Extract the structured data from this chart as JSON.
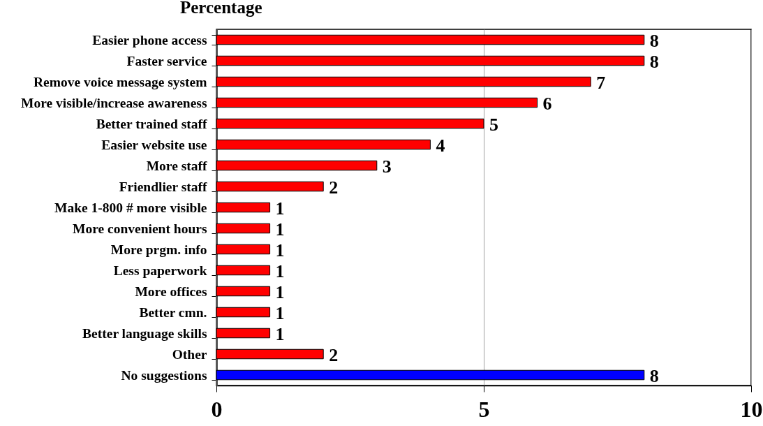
{
  "chart_data": {
    "type": "bar",
    "orientation": "horizontal",
    "title": "Percentage",
    "categories": [
      "Easier phone access",
      "Faster service",
      "Remove voice message system",
      "More visible/increase awareness",
      "Better trained staff",
      "Easier website use",
      "More staff",
      "Friendlier staff",
      "Make 1-800 # more visible",
      "More convenient hours",
      "More prgm. info",
      "Less paperwork",
      "More offices",
      "Better cmn.",
      "Better language skills",
      "Other",
      "No suggestions"
    ],
    "values": [
      8,
      8,
      7,
      6,
      5,
      4,
      3,
      2,
      1,
      1,
      1,
      1,
      1,
      1,
      1,
      2,
      8
    ],
    "colors": [
      "#ff0000",
      "#ff0000",
      "#ff0000",
      "#ff0000",
      "#ff0000",
      "#ff0000",
      "#ff0000",
      "#ff0000",
      "#ff0000",
      "#ff0000",
      "#ff0000",
      "#ff0000",
      "#ff0000",
      "#ff0000",
      "#ff0000",
      "#ff0000",
      "#0000ff"
    ],
    "xlim": [
      0,
      10
    ],
    "xticks": [
      0,
      5,
      10
    ],
    "grid": "x",
    "data_labels": true
  }
}
